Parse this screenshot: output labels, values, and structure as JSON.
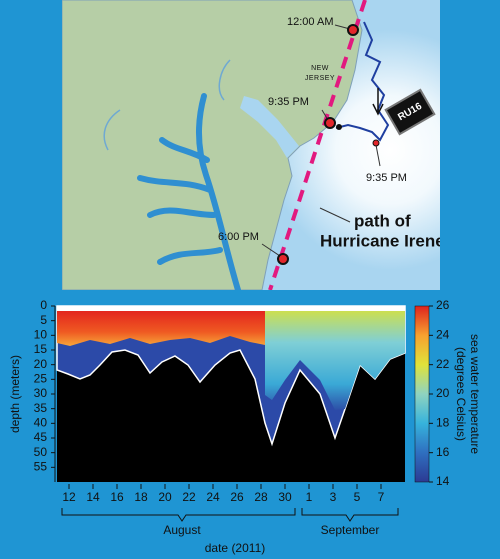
{
  "map": {
    "labels": [
      "12:00 AM",
      "9:35 PM",
      "9:35 PM",
      "6:00 PM"
    ],
    "state": [
      "NEW",
      "JERSEY"
    ],
    "annotation": [
      "path of",
      "Hurricane Irene"
    ],
    "glider": "RU16"
  },
  "chart_data": {
    "type": "section",
    "y_label": "depth (meters)",
    "x_label": "date (2011)",
    "x_groups": [
      "August",
      "September"
    ],
    "ylim": [
      0,
      60
    ],
    "yticks": [
      0,
      5,
      10,
      15,
      20,
      25,
      30,
      35,
      40,
      45,
      50,
      55
    ],
    "xlim": [
      "2011-08-11",
      "2011-09-09"
    ],
    "xticks": [
      {
        "value": "2011-08-12",
        "label": "12"
      },
      {
        "value": "2011-08-14",
        "label": "14"
      },
      {
        "value": "2011-08-16",
        "label": "16"
      },
      {
        "value": "2011-08-18",
        "label": "18"
      },
      {
        "value": "2011-08-20",
        "label": "20"
      },
      {
        "value": "2011-08-22",
        "label": "22"
      },
      {
        "value": "2011-08-24",
        "label": "24"
      },
      {
        "value": "2011-08-26",
        "label": "26"
      },
      {
        "value": "2011-08-28",
        "label": "28"
      },
      {
        "value": "2011-08-30",
        "label": "30"
      },
      {
        "value": "2011-09-01",
        "label": "1"
      },
      {
        "value": "2011-09-03",
        "label": "3"
      },
      {
        "value": "2011-09-05",
        "label": "5"
      },
      {
        "value": "2011-09-07",
        "label": "7"
      }
    ],
    "colorbar": {
      "label": [
        "sea water temperature",
        "(degrees Celsius)"
      ],
      "lim": [
        14,
        26
      ],
      "ticks": [
        14,
        16,
        18,
        20,
        22,
        24,
        26
      ],
      "colors": [
        "#2b3a93",
        "#2f6fc0",
        "#36b3dc",
        "#8fd3c0",
        "#dfe33a",
        "#f7a12f",
        "#e0231e"
      ]
    }
  }
}
